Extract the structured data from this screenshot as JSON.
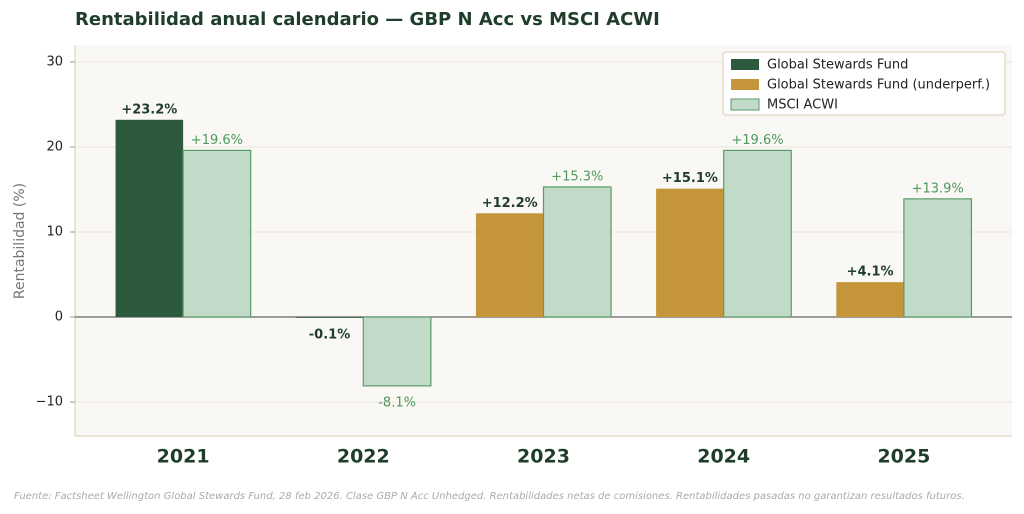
{
  "chart_data": {
    "type": "bar",
    "title": "Rentabilidad anual calendario — GBP N Acc vs MSCI ACWI",
    "y_label": "Rentabilidad (%)",
    "footnote": "Fuente: Factsheet Wellington Global Stewards Fund, 28 feb 2026. Clase GBP N Acc Unhedged. Rentabilidades netas de comisiones. Rentabilidades pasadas no garantizan resultados futuros.",
    "categories": [
      "2021",
      "2022",
      "2023",
      "2024",
      "2025"
    ],
    "series": [
      {
        "name": "Global Stewards Fund",
        "color": "#2d5a3d",
        "values": [
          23.2,
          -0.1,
          null,
          null,
          null
        ],
        "value_labels": [
          "+23.2%",
          "-0.1%",
          null,
          null,
          null
        ]
      },
      {
        "name": "Global Stewards Fund (underperf.)",
        "color": "#c4953a",
        "values": [
          null,
          null,
          12.2,
          15.1,
          4.1
        ],
        "value_labels": [
          null,
          null,
          "+12.2%",
          "+15.1%",
          "+4.1%"
        ]
      },
      {
        "name": "MSCI ACWI",
        "color": "#c2dbc8",
        "values": [
          19.6,
          -8.1,
          15.3,
          19.6,
          13.9
        ],
        "value_labels": [
          "+19.6%",
          "-8.1%",
          "+15.3%",
          "+19.6%",
          "+13.9%"
        ]
      }
    ],
    "ylim": [
      -14,
      32
    ],
    "yticks": [
      {
        "value": -10,
        "label": "−10"
      },
      0,
      10,
      20,
      30
    ],
    "grid": true,
    "legend": "upper right"
  }
}
